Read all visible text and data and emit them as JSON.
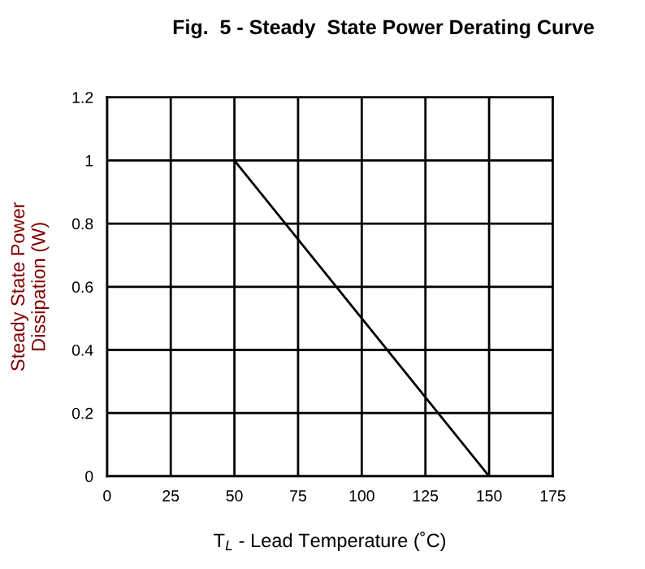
{
  "chart_data": {
    "type": "line",
    "title": "Fig.  5 - Steady  State Power Derating Curve",
    "xlabel": "T$_{L}$ - Lead Temperature (˚C)",
    "ylabel": "Steady State Power\nDissipation (W)",
    "series": [
      {
        "color": "#000000",
        "x": [
          50,
          150
        ],
        "values": [
          1,
          0
        ]
      }
    ],
    "xlim": [
      0,
      175
    ],
    "xticks": [
      0,
      25,
      50,
      75,
      100,
      125,
      150,
      175
    ],
    "ylim": [
      0,
      1.2
    ],
    "yticks": [
      0,
      0.2,
      0.4,
      0.6,
      0.8,
      1,
      1.2
    ],
    "grid": true,
    "marker": "none",
    "line_style": "solid"
  }
}
